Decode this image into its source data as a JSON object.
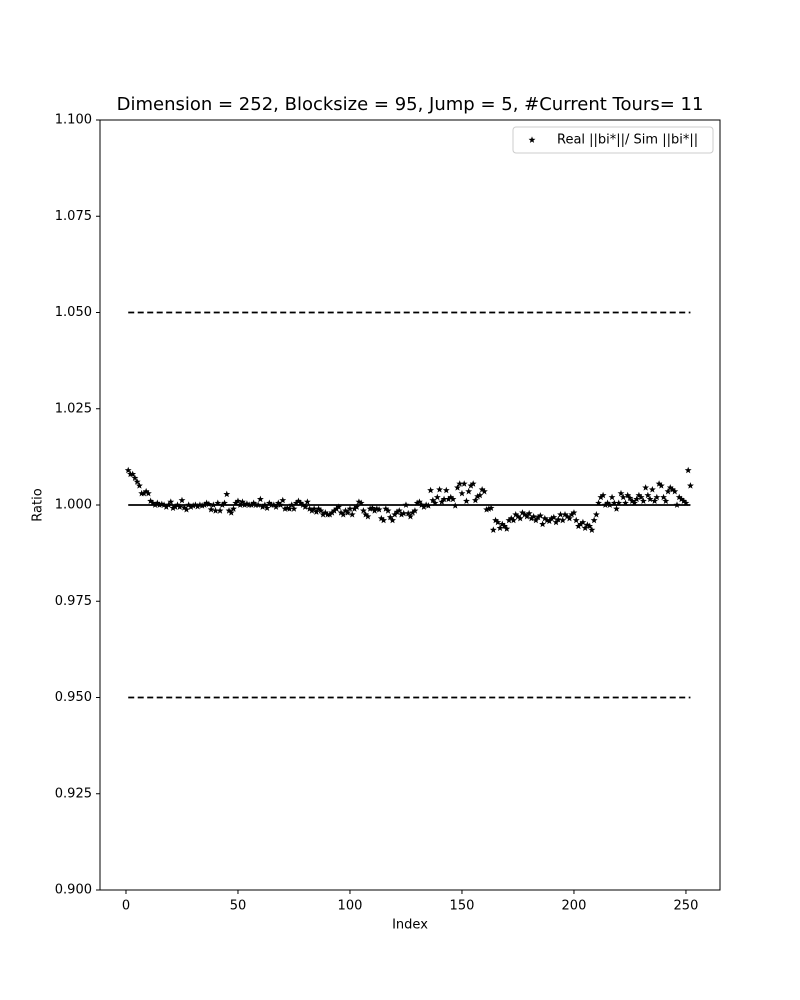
{
  "chart_data": {
    "type": "scatter",
    "title": "Dimension = 252, Blocksize = 95, Jump = 5, #Current Tours= 11",
    "xlabel": "Index",
    "ylabel": "Ratio",
    "series": [
      {
        "name": "Real ||bi*||/ Sim ||bi*||",
        "color": "#000000",
        "marker": "star",
        "x": [
          1,
          2,
          3,
          4,
          5,
          6,
          7,
          8,
          9,
          10,
          11,
          12,
          13,
          14,
          15,
          16,
          17,
          18,
          19,
          20,
          21,
          22,
          23,
          24,
          25,
          26,
          27,
          28,
          29,
          30,
          31,
          32,
          33,
          34,
          35,
          36,
          37,
          38,
          39,
          40,
          41,
          42,
          43,
          44,
          45,
          46,
          47,
          48,
          49,
          50,
          51,
          52,
          53,
          54,
          55,
          56,
          57,
          58,
          59,
          60,
          61,
          62,
          63,
          64,
          65,
          66,
          67,
          68,
          69,
          70,
          71,
          72,
          73,
          74,
          75,
          76,
          77,
          78,
          79,
          80,
          81,
          82,
          83,
          84,
          85,
          86,
          87,
          88,
          89,
          90,
          91,
          92,
          93,
          94,
          95,
          96,
          97,
          98,
          99,
          100,
          101,
          102,
          103,
          104,
          105,
          106,
          107,
          108,
          109,
          110,
          111,
          112,
          113,
          114,
          115,
          116,
          117,
          118,
          119,
          120,
          121,
          122,
          123,
          124,
          125,
          126,
          127,
          128,
          129,
          130,
          131,
          132,
          133,
          134,
          135,
          136,
          137,
          138,
          139,
          140,
          141,
          142,
          143,
          144,
          145,
          146,
          147,
          148,
          149,
          150,
          151,
          152,
          153,
          154,
          155,
          156,
          157,
          158,
          159,
          160,
          161,
          162,
          163,
          164,
          165,
          166,
          167,
          168,
          169,
          170,
          171,
          172,
          173,
          174,
          175,
          176,
          177,
          178,
          179,
          180,
          181,
          182,
          183,
          184,
          185,
          186,
          187,
          188,
          189,
          190,
          191,
          192,
          193,
          194,
          195,
          196,
          197,
          198,
          199,
          200,
          201,
          202,
          203,
          204,
          205,
          206,
          207,
          208,
          209,
          210,
          211,
          212,
          213,
          214,
          215,
          216,
          217,
          218,
          219,
          220,
          221,
          222,
          223,
          224,
          225,
          226,
          227,
          228,
          229,
          230,
          231,
          232,
          233,
          234,
          235,
          236,
          237,
          238,
          239,
          240,
          241,
          242,
          243,
          244,
          245,
          246,
          247,
          248,
          249,
          250,
          251,
          252
        ],
        "values": [
          1.009,
          1.008,
          1.008,
          1.007,
          1.006,
          1.005,
          1.003,
          1.003,
          1.0035,
          1.003,
          1.001,
          1.0005,
          1.0,
          1.0005,
          1.0,
          1.0002,
          1.0,
          0.9995,
          1.0,
          1.0008,
          0.9992,
          0.9995,
          1.0,
          0.9995,
          1.0012,
          0.9993,
          0.9988,
          1.0,
          0.9995,
          0.9998,
          1.0,
          0.9996,
          1.0,
          0.9998,
          1.0,
          1.0005,
          1.0002,
          0.9988,
          1.0,
          0.9985,
          1.0005,
          0.9985,
          1.0,
          1.0005,
          1.0028,
          0.9985,
          0.998,
          0.999,
          1.0005,
          1.001,
          1.0,
          1.0008,
          1.0,
          1.0003,
          1.0,
          1.0,
          1.0005,
          1.0,
          1.0,
          1.0015,
          0.9995,
          1.0,
          0.9992,
          1.0005,
          1.0,
          1.0,
          0.9995,
          1.0005,
          1.0,
          1.0012,
          0.999,
          0.9992,
          0.999,
          1.0,
          0.999,
          1.0005,
          1.001,
          1.0005,
          1.0,
          0.9995,
          1.0008,
          0.999,
          0.9985,
          0.999,
          0.9982,
          0.999,
          0.9985,
          0.9975,
          0.998,
          0.9975,
          0.9975,
          0.998,
          0.9985,
          0.999,
          0.9995,
          0.998,
          0.9975,
          0.9985,
          0.998,
          0.999,
          0.9975,
          0.999,
          0.9995,
          1.0008,
          1.0005,
          0.9985,
          0.9975,
          0.997,
          0.999,
          0.9992,
          0.9985,
          0.999,
          0.9988,
          0.9965,
          0.996,
          0.999,
          0.9985,
          0.9968,
          0.996,
          0.9975,
          0.9982,
          0.9985,
          0.9975,
          0.9978,
          1.0,
          0.9978,
          0.997,
          0.998,
          0.9985,
          1.0005,
          1.0008,
          1.0,
          0.9995,
          1.0,
          0.9998,
          1.0038,
          1.0012,
          1.0005,
          1.002,
          1.004,
          1.0008,
          1.0015,
          1.0038,
          1.0015,
          1.002,
          1.0015,
          0.9998,
          1.0045,
          1.0055,
          1.003,
          1.0055,
          1.001,
          1.0035,
          1.005,
          1.0055,
          1.0012,
          1.0022,
          1.0025,
          1.004,
          1.0035,
          0.9988,
          0.999,
          0.9992,
          0.9935,
          0.996,
          0.9955,
          0.994,
          0.995,
          0.9945,
          0.9938,
          0.996,
          0.9965,
          0.996,
          0.9975,
          0.997,
          0.9965,
          0.998,
          0.9975,
          0.997,
          0.9978,
          0.9965,
          0.997,
          0.996,
          0.9968,
          0.9972,
          0.995,
          0.9965,
          0.996,
          0.9958,
          0.9965,
          0.9968,
          0.9955,
          0.9962,
          0.9975,
          0.996,
          0.9975,
          0.997,
          0.9965,
          0.9975,
          0.998,
          0.996,
          0.9945,
          0.995,
          0.9955,
          0.994,
          0.9948,
          0.9945,
          0.9935,
          0.996,
          0.9975,
          1.0005,
          1.002,
          1.0025,
          1.0,
          1.0005,
          1.0,
          1.002,
          1.0005,
          0.999,
          1.0005,
          1.003,
          1.002,
          1.0005,
          1.0025,
          1.0018,
          1.001,
          1.0005,
          1.0015,
          1.0025,
          1.002,
          1.001,
          1.0045,
          1.0025,
          1.0015,
          1.004,
          1.001,
          1.002,
          1.0055,
          1.005,
          1.002,
          1.001,
          1.0035,
          1.0045,
          1.004,
          1.0035,
          1.0,
          1.002,
          1.0015,
          1.001,
          1.0005,
          1.009,
          1.005
        ]
      }
    ],
    "reference_lines": [
      {
        "y": 1.05,
        "style": "dashed"
      },
      {
        "y": 1.0,
        "style": "solid"
      },
      {
        "y": 0.95,
        "style": "dashed"
      }
    ],
    "xlim": [
      -11.6,
      265.2
    ],
    "xticks": [
      0,
      50,
      100,
      150,
      200,
      250
    ],
    "ylim": [
      0.9,
      1.1
    ],
    "yticks": [
      {
        "value": 0.9,
        "label": "0.900"
      },
      {
        "value": 0.925,
        "label": "0.925"
      },
      {
        "value": 0.95,
        "label": "0.950"
      },
      {
        "value": 0.975,
        "label": "0.975"
      },
      {
        "value": 1.0,
        "label": "1.000"
      },
      {
        "value": 1.025,
        "label": "1.025"
      },
      {
        "value": 1.05,
        "label": "1.050"
      },
      {
        "value": 1.075,
        "label": "1.075"
      },
      {
        "value": 1.1,
        "label": "1.100"
      }
    ],
    "legend": "upper right",
    "grid": false
  }
}
